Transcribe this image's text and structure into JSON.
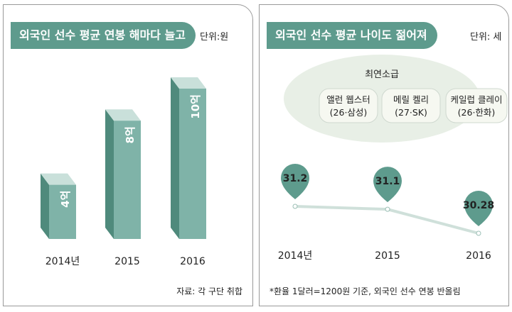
{
  "left_panel": {
    "title": "외국인 선수 평균 연봉 해마다 늘고",
    "unit": "단위:원",
    "source": "자료: 각 구단 취합"
  },
  "right_panel": {
    "title": "외국인 선수 평균 나이도 젊어져",
    "unit": "단위: 세",
    "youngest_label": "최연소급",
    "players": [
      {
        "name": "앨런 웹스터",
        "detail": "(26·삼성)"
      },
      {
        "name": "메릴 켈리",
        "detail": "(27·SK)"
      },
      {
        "name": "케일럽 클레이",
        "detail": "(26·한화)"
      }
    ],
    "footnote": "*환율 1달러=1200원 기준, 외국인 선수 연봉 반올림"
  },
  "colors": {
    "accent": "#5e9b8d",
    "bar_front": "#7fb3a8",
    "bar_side": "#4f8a7c",
    "bar_top": "#c9e0da",
    "bubble_fill": "#e8efe6",
    "player_box_fill": "#f6f8f1",
    "line": "#cfe0da"
  },
  "chart_data": [
    {
      "type": "bar",
      "categories": [
        "2014년",
        "2015",
        "2016"
      ],
      "values": [
        4,
        8,
        10
      ],
      "value_labels": [
        "4억",
        "8억",
        "10억"
      ],
      "unit": "억원",
      "ylim": [
        0,
        10
      ],
      "grid": false,
      "legend": "none"
    },
    {
      "type": "line",
      "categories": [
        "2014년",
        "2015",
        "2016"
      ],
      "values": [
        31.2,
        31.1,
        30.28
      ],
      "value_labels": [
        "31.2",
        "31.1",
        "30.28"
      ],
      "unit": "세",
      "grid": false,
      "legend": "none"
    }
  ]
}
